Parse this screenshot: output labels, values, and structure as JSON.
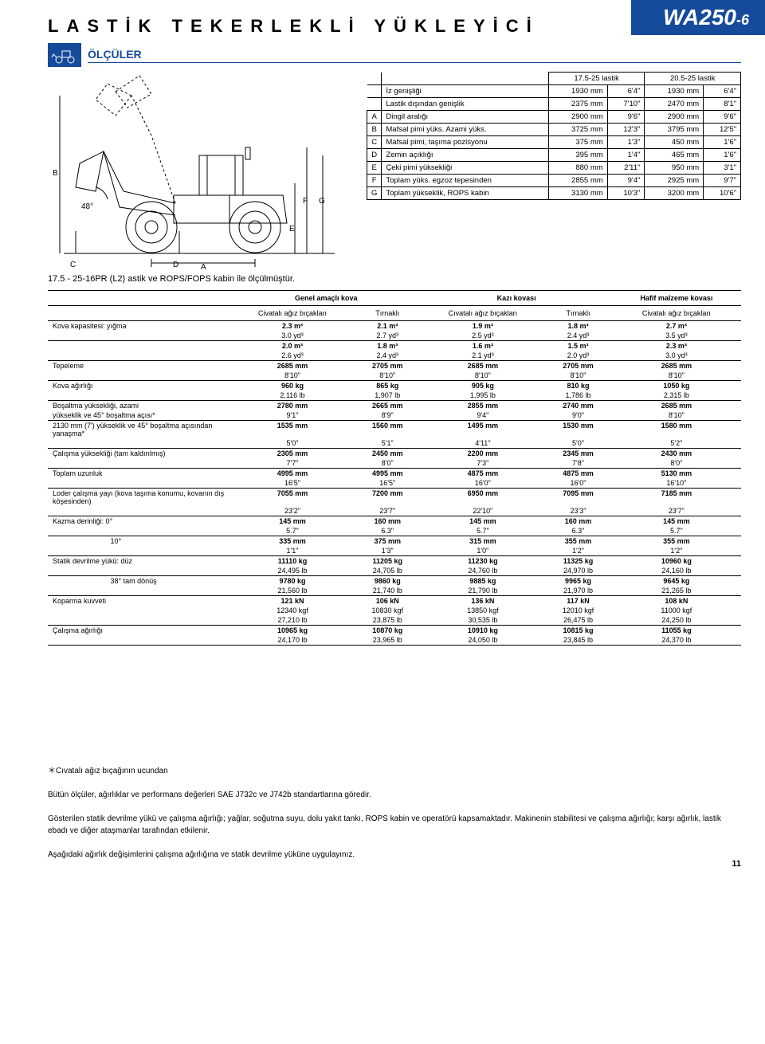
{
  "header": {
    "title_left": "LASTİK TEKERLEKLİ YÜKLEYİCİ",
    "model": "WA250",
    "model_suffix": "-6"
  },
  "subheader": {
    "label": "ÖLÇÜLER"
  },
  "diagram": {
    "labels": {
      "A": "A",
      "B": "B",
      "C": "C",
      "D": "D",
      "E": "E",
      "F": "F",
      "G": "G",
      "angle": "48°"
    }
  },
  "dim_table": {
    "col1": "17.5-25 lastik",
    "col2": "20.5-25 lastik",
    "rows": [
      {
        "k": "",
        "l": "İz genişliği",
        "a": "1930 mm",
        "af": "6'4\"",
        "b": "1930 mm",
        "bf": "6'4\""
      },
      {
        "k": "",
        "l": "Lastik dışından genişlik",
        "a": "2375 mm",
        "af": "7'10\"",
        "b": "2470 mm",
        "bf": "8'1\""
      },
      {
        "k": "A",
        "l": "Dingil aralığı",
        "a": "2900 mm",
        "af": "9'6\"",
        "b": "2900 mm",
        "bf": "9'6\""
      },
      {
        "k": "B",
        "l": "Mafsal pimi yüks. Azami yüks.",
        "a": "3725 mm",
        "af": "12'3\"",
        "b": "3795 mm",
        "bf": "12'5\""
      },
      {
        "k": "C",
        "l": "Mafsal pimi, taşıma pozisyonu",
        "a": "375 mm",
        "af": "1'3\"",
        "b": "450 mm",
        "bf": "1'6\""
      },
      {
        "k": "D",
        "l": "Zemin açıklığı",
        "a": "395 mm",
        "af": "1'4\"",
        "b": "465 mm",
        "bf": "1'6\""
      },
      {
        "k": "E",
        "l": "Çeki pimi yüksekliği",
        "a": "880 mm",
        "af": "2'11\"",
        "b": "950 mm",
        "bf": "3'1\""
      },
      {
        "k": "F",
        "l": "Toplam yüks. egzoz tepesinden",
        "a": "2855 mm",
        "af": "9'4\"",
        "b": "2925 mm",
        "bf": "9'7\""
      },
      {
        "k": "G",
        "l": "Toplam yükseklik, ROPS kabin",
        "a": "3130 mm",
        "af": "10'3\"",
        "b": "3200 mm",
        "bf": "10'6\""
      }
    ]
  },
  "note": "17.5 - 25-16PR (L2) astik ve ROPS/FOPS kabin ile ölçülmüştür.",
  "spec_headers": {
    "g1": "Genel amaçlı kova",
    "g2": "Kazı kovası",
    "g3": "Hafif malzeme kovası",
    "c1": "Civatalı ağız bıçakları",
    "c2": "Tırnaklı",
    "c3": "Cıvatalı ağız bıçakları",
    "c4": "Tırnaklı",
    "c5": "Civatalı ağız bıçakları"
  },
  "rows": [
    {
      "sep": 1,
      "l": "Kova kapasitesi: yığma",
      "v": [
        [
          "2.3 m³",
          "3.0 yd³"
        ],
        [
          "2.1 m³",
          "2.7 yd³"
        ],
        [
          "1.9 m³",
          "2.5 yd³"
        ],
        [
          "1.8 m³",
          "2.4 yd³"
        ],
        [
          "2.7 m³",
          "3.5 yd³"
        ]
      ]
    },
    {
      "sep": 1,
      "l": "",
      "v": [
        [
          "2.0 m³",
          "2.6 yd³"
        ],
        [
          "1.8 m³",
          "2.4 yd³"
        ],
        [
          "1.6 m³",
          "2.1 yd³"
        ],
        [
          "1.5 m³",
          "2.0 yd³"
        ],
        [
          "2.3 m³",
          "3.0 yd³"
        ]
      ]
    },
    {
      "sep": 1,
      "l": "Tepeleme",
      "v": [
        [
          "2685 mm",
          "8'10\""
        ],
        [
          "2705 mm",
          "8'10\""
        ],
        [
          "2685 mm",
          "8'10\""
        ],
        [
          "2705 mm",
          "8'10\""
        ],
        [
          "2685 mm",
          "8'10\""
        ]
      ]
    },
    {
      "sep": 1,
      "l": "Kova ağırlığı",
      "v": [
        [
          "960 kg",
          "2,116 lb"
        ],
        [
          "865 kg",
          "1,907 lb"
        ],
        [
          "905 kg",
          "1,995 lb"
        ],
        [
          "810 kg",
          "1,786 lb"
        ],
        [
          "1050 kg",
          "2,315 lb"
        ]
      ]
    },
    {
      "sep": 1,
      "l": "Boşaltma yüksekliği, azami\nyükseklik ve 45° boşaltma açısı*",
      "v": [
        [
          "2780 mm",
          "9'1\""
        ],
        [
          "2665 mm",
          "8'9\""
        ],
        [
          "2855 mm",
          "9'4\""
        ],
        [
          "2740 mm",
          "9'0\""
        ],
        [
          "2685 mm",
          "8'10\""
        ]
      ]
    },
    {
      "sep": 1,
      "l": "2130 mm (7') yükseklik ve 45° boşaltma açısından yanaşma*",
      "v": [
        [
          "1535 mm",
          "5'0\""
        ],
        [
          "1560 mm",
          "5'1\""
        ],
        [
          "1495 mm",
          "4'11\""
        ],
        [
          "1530 mm",
          "5'0\""
        ],
        [
          "1580 mm",
          "5'2\""
        ]
      ]
    },
    {
      "sep": 1,
      "l": "Çalışma yüksekliği (tam kaldırılmış)",
      "v": [
        [
          "2305 mm",
          "7'7\""
        ],
        [
          "2450 mm",
          "8'0\""
        ],
        [
          "2200 mm",
          "7'3\""
        ],
        [
          "2345 mm",
          "7'8\""
        ],
        [
          "2430 mm",
          "8'0\""
        ]
      ]
    },
    {
      "sep": 1,
      "l": "Toplam uzunluk",
      "v": [
        [
          "4995 mm",
          "16'5\""
        ],
        [
          "4995 mm",
          "16'5\""
        ],
        [
          "4875 mm",
          "16'0\""
        ],
        [
          "4875 mm",
          "16'0\""
        ],
        [
          "5130 mm",
          "16'10\""
        ]
      ]
    },
    {
      "sep": 1,
      "l": "Loder çalışma yayı (kova taşıma konumu, kovanın dış köşesinden)",
      "v": [
        [
          "7055 mm",
          "23'2\""
        ],
        [
          "7200 mm",
          "23'7\""
        ],
        [
          "6950 mm",
          "22'10\""
        ],
        [
          "7095 mm",
          "23'3\""
        ],
        [
          "7185 mm",
          "23'7\""
        ]
      ]
    },
    {
      "sep": 1,
      "l": "Kazma derinliği: 0°",
      "v": [
        [
          "145 mm",
          "5.7\""
        ],
        [
          "160 mm",
          "6.3\""
        ],
        [
          "145 mm",
          "5.7\""
        ],
        [
          "160 mm",
          "6.3\""
        ],
        [
          "145 mm",
          "5.7\""
        ]
      ]
    },
    {
      "sep": 1,
      "l": "                             10°",
      "v": [
        [
          "335 mm",
          "1'1\""
        ],
        [
          "375 mm",
          "1'3\""
        ],
        [
          "315 mm",
          "1'0\""
        ],
        [
          "355 mm",
          "1'2\""
        ],
        [
          "355 mm",
          "1'2\""
        ]
      ]
    },
    {
      "sep": 1,
      "l": "Statik devrilme yükü: düz",
      "v": [
        [
          "11110 kg",
          "24,495 lb"
        ],
        [
          "11205 kg",
          "24,705 lb"
        ],
        [
          "11230 kg",
          "24,760 lb"
        ],
        [
          "11325 kg",
          "24,970 lb"
        ],
        [
          "10960 kg",
          "24,160 lb"
        ]
      ]
    },
    {
      "sep": 1,
      "l": "                             38° tam dönüş",
      "v": [
        [
          "9780 kg",
          "21,560 lb"
        ],
        [
          "9860 kg",
          "21,740 lb"
        ],
        [
          "9885 kg",
          "21,790 lb"
        ],
        [
          "9965 kg",
          "21,970 lb"
        ],
        [
          "9645 kg",
          "21,265 lb"
        ]
      ]
    },
    {
      "sep": 1,
      "l": "Koparma kuvveti",
      "v": [
        [
          "121 kN",
          "12340 kgf",
          "27,210 lb"
        ],
        [
          "106 kN",
          "10830 kgf",
          "23,875 lb"
        ],
        [
          "136 kN",
          "13850 kgf",
          "30,535 lb"
        ],
        [
          "117 kN",
          "12010 kgf",
          "26,475 lb"
        ],
        [
          "108 kN",
          "11000 kgf",
          "24,250 lb"
        ]
      ]
    },
    {
      "sep": 1,
      "bot": 1,
      "l": "Çalışma ağırlığı",
      "v": [
        [
          "10965 kg",
          "24,170 lb"
        ],
        [
          "10870 kg",
          "23,965 lb"
        ],
        [
          "10910 kg",
          "24,050 lb"
        ],
        [
          "10815 kg",
          "23,845 lb"
        ],
        [
          "11055 kg",
          "24,370 lb"
        ]
      ]
    }
  ],
  "footnotes": [
    "＊Cıvatalı ağız bıçağının ucundan",
    "Bütün ölçüler, ağırlıklar ve performans değerleri SAE J732c ve J742b standartlarına göredir.",
    "Gösterilen statik devrilme yükü ve çalışma ağırlığı; yağlar, soğutma suyu, dolu yakıt tankı, ROPS kabin ve operatörü kapsamaktadır. Makinenin stabilitesi ve çalışma ağırlığı; karşı ağırlık, lastik ebadı ve diğer ataşmanlar tarafından etkilenir.",
    "Aşağıdaki ağırlık değişimlerini çalışma ağırlığına ve statik devrilme yüküne uygulayınız."
  ],
  "pagenum": "11"
}
